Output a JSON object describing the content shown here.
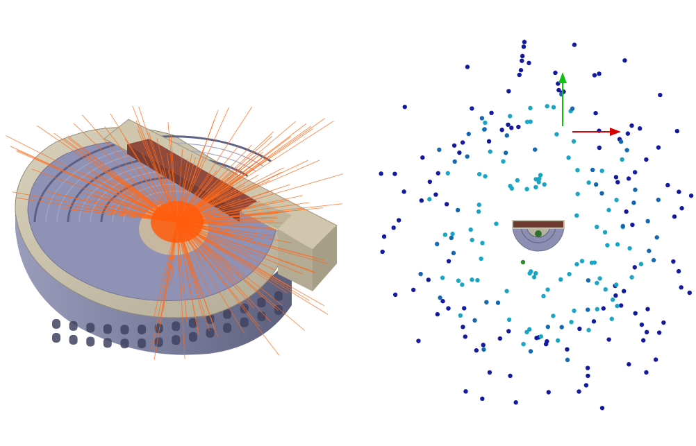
{
  "colors": {
    "background": "#ffffff",
    "stone_top": "#c9c2ad",
    "stone_side": "#a49c88",
    "seating_blue": "#8c8fb2",
    "seating_dark": "#6f7296",
    "facade": "#7c7f9e",
    "arch_dark": "#3f4260",
    "roof_red": "#7a3d33",
    "ray_orange": "#ff6a1a",
    "point_dark_blue": "#141aa0",
    "point_cyan": "#1aa5c4",
    "axis_x_red": "#d40000",
    "axis_y_green": "#10c010"
  },
  "left_view": {
    "description_icon": "theatre-model-with-ray-casting-icon"
  },
  "right_view": {
    "description_icon": "camera-position-scatter-icon",
    "axes_icon": "xy-axes-gizmo-icon"
  }
}
